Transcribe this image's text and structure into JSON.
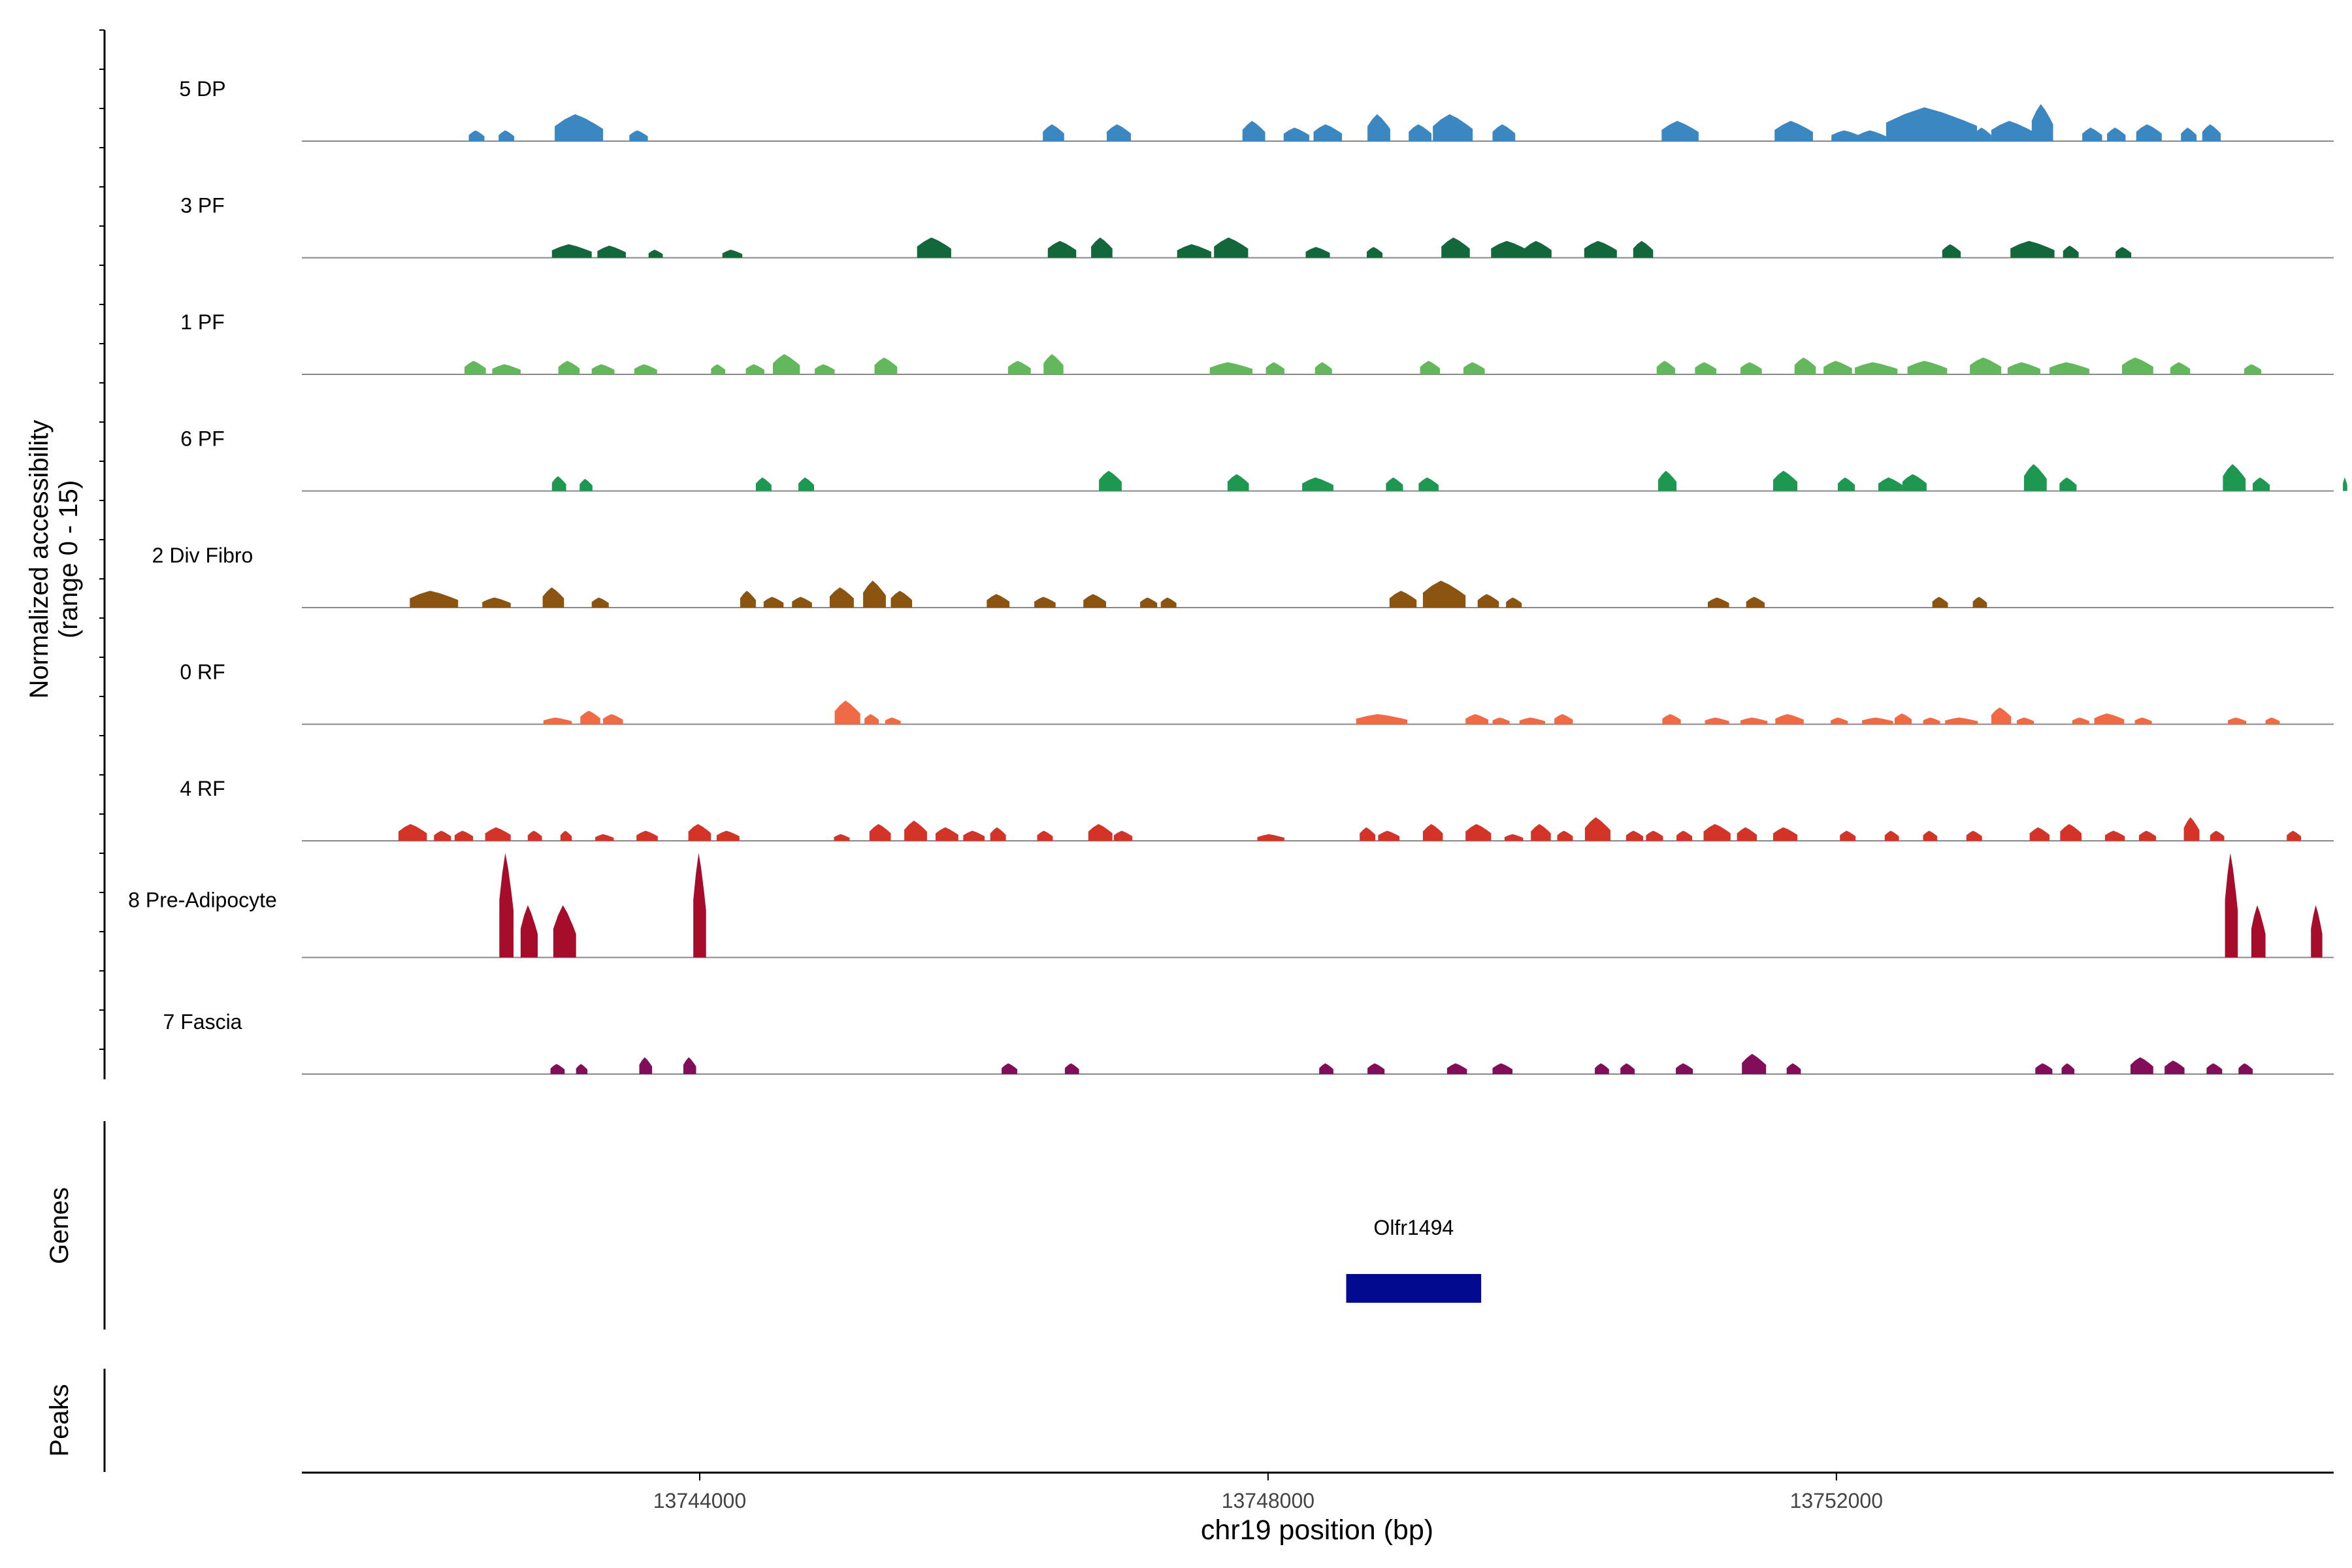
{
  "chart_data": {
    "type": "area",
    "title": "",
    "chromosome": "chr19",
    "xlabel": "chr19 position (bp)",
    "ylabel_line1": "Normalized accessibility",
    "ylabel_line2": "(range 0 - 15)",
    "xlim": [
      13741200,
      13755500
    ],
    "ylim": [
      0,
      15
    ],
    "x_ticks": [
      {
        "value": 13744000,
        "label": "13744000"
      },
      {
        "value": 13748000,
        "label": "13748000"
      },
      {
        "value": 13752000,
        "label": "13752000"
      }
    ],
    "tracks": [
      {
        "name": "5 DP",
        "color": "#3a87c2",
        "peaks": [
          [
            13742430,
            110,
            1.6
          ],
          [
            13742640,
            110,
            1.6
          ],
          [
            13743150,
            340,
            4.0
          ],
          [
            13743570,
            130,
            1.6
          ],
          [
            13746490,
            150,
            2.5
          ],
          [
            13746950,
            170,
            2.5
          ],
          [
            13747900,
            160,
            3.0
          ],
          [
            13748200,
            180,
            2.0
          ],
          [
            13748420,
            200,
            2.5
          ],
          [
            13748780,
            160,
            4.0
          ],
          [
            13749070,
            160,
            2.5
          ],
          [
            13749300,
            280,
            4.0
          ],
          [
            13749660,
            160,
            2.5
          ],
          [
            13750900,
            260,
            3.0
          ],
          [
            13751700,
            270,
            3.0
          ],
          [
            13752070,
            210,
            1.6
          ],
          [
            13752250,
            200,
            1.6
          ],
          [
            13752670,
            640,
            5.0
          ],
          [
            13753030,
            120,
            2.0
          ],
          [
            13753240,
            300,
            3.0
          ],
          [
            13753450,
            150,
            5.5
          ],
          [
            13753800,
            140,
            2.0
          ],
          [
            13753970,
            130,
            2.0
          ],
          [
            13754200,
            180,
            2.5
          ],
          [
            13754480,
            110,
            2.0
          ],
          [
            13754640,
            130,
            2.5
          ]
        ]
      },
      {
        "name": "3 PF",
        "color": "#12683a",
        "peaks": [
          [
            13743100,
            280,
            2.0
          ],
          [
            13743380,
            200,
            1.8
          ],
          [
            13743690,
            100,
            1.2
          ],
          [
            13744230,
            140,
            1.2
          ],
          [
            13745650,
            240,
            3.0
          ],
          [
            13746550,
            200,
            2.5
          ],
          [
            13746830,
            150,
            3.0
          ],
          [
            13747480,
            240,
            2.0
          ],
          [
            13747740,
            240,
            3.0
          ],
          [
            13748350,
            170,
            1.6
          ],
          [
            13748750,
            110,
            1.6
          ],
          [
            13749320,
            200,
            3.0
          ],
          [
            13749700,
            260,
            2.5
          ],
          [
            13749900,
            190,
            2.5
          ],
          [
            13750340,
            230,
            2.5
          ],
          [
            13750640,
            140,
            2.5
          ],
          [
            13752810,
            130,
            2.0
          ],
          [
            13753380,
            310,
            2.5
          ],
          [
            13753650,
            110,
            1.8
          ],
          [
            13754020,
            110,
            1.6
          ]
        ]
      },
      {
        "name": "1 PF",
        "color": "#62b85a",
        "peaks": [
          [
            13742420,
            150,
            2.0
          ],
          [
            13742640,
            200,
            1.5
          ],
          [
            13743080,
            150,
            2.0
          ],
          [
            13743320,
            160,
            1.5
          ],
          [
            13743620,
            160,
            1.5
          ],
          [
            13744130,
            100,
            1.5
          ],
          [
            13744390,
            130,
            1.5
          ],
          [
            13744610,
            190,
            3.0
          ],
          [
            13744880,
            140,
            1.5
          ],
          [
            13745310,
            160,
            2.5
          ],
          [
            13746250,
            160,
            2.0
          ],
          [
            13746490,
            140,
            3.0
          ],
          [
            13747740,
            300,
            1.8
          ],
          [
            13748050,
            130,
            1.8
          ],
          [
            13748390,
            120,
            1.8
          ],
          [
            13749140,
            140,
            2.0
          ],
          [
            13749450,
            150,
            1.8
          ],
          [
            13750800,
            130,
            2.0
          ],
          [
            13751080,
            150,
            1.8
          ],
          [
            13751400,
            150,
            1.8
          ],
          [
            13751780,
            150,
            2.5
          ],
          [
            13752010,
            200,
            2.0
          ],
          [
            13752280,
            300,
            1.8
          ],
          [
            13752640,
            280,
            2.0
          ],
          [
            13753050,
            220,
            2.5
          ],
          [
            13753320,
            230,
            1.8
          ],
          [
            13753640,
            280,
            1.8
          ],
          [
            13754120,
            220,
            2.5
          ],
          [
            13754420,
            140,
            1.8
          ],
          [
            13754930,
            120,
            1.5
          ]
        ]
      },
      {
        "name": "6 PF",
        "color": "#1c9850",
        "peaks": [
          [
            13743010,
            100,
            2.2
          ],
          [
            13743200,
            90,
            1.8
          ],
          [
            13744450,
            110,
            2.0
          ],
          [
            13744750,
            110,
            2.0
          ],
          [
            13746890,
            160,
            3.0
          ],
          [
            13747790,
            150,
            2.5
          ],
          [
            13748350,
            220,
            2.0
          ],
          [
            13748890,
            120,
            2.0
          ],
          [
            13749130,
            140,
            2.0
          ],
          [
            13750810,
            130,
            3.0
          ],
          [
            13751640,
            170,
            3.0
          ],
          [
            13752070,
            120,
            2.0
          ],
          [
            13752380,
            170,
            2.0
          ],
          [
            13752550,
            170,
            2.5
          ],
          [
            13753400,
            160,
            4.0
          ],
          [
            13753630,
            120,
            2.0
          ],
          [
            13754800,
            160,
            4.0
          ],
          [
            13754990,
            120,
            2.0
          ],
          [
            13755580,
            30,
            2.0
          ]
        ]
      },
      {
        "name": "2 Div Fibro",
        "color": "#8b5410",
        "peaks": [
          [
            13742130,
            340,
            2.5
          ],
          [
            13742570,
            200,
            1.5
          ],
          [
            13742970,
            150,
            3.0
          ],
          [
            13743300,
            120,
            1.5
          ],
          [
            13744340,
            110,
            2.5
          ],
          [
            13744520,
            140,
            1.6
          ],
          [
            13744720,
            140,
            1.6
          ],
          [
            13745000,
            170,
            3.0
          ],
          [
            13745230,
            160,
            4.0
          ],
          [
            13745420,
            150,
            2.5
          ],
          [
            13746100,
            160,
            2.0
          ],
          [
            13746430,
            150,
            1.6
          ],
          [
            13746780,
            160,
            2.0
          ],
          [
            13747160,
            120,
            1.5
          ],
          [
            13747300,
            110,
            1.5
          ],
          [
            13748950,
            190,
            2.5
          ],
          [
            13749240,
            300,
            4.0
          ],
          [
            13749550,
            150,
            2.0
          ],
          [
            13749730,
            110,
            1.5
          ],
          [
            13751170,
            150,
            1.5
          ],
          [
            13751430,
            130,
            1.6
          ],
          [
            13752730,
            110,
            1.6
          ],
          [
            13753010,
            100,
            1.6
          ]
        ]
      },
      {
        "name": "0 RF",
        "color": "#f06b45",
        "peaks": [
          [
            13743000,
            200,
            1.0
          ],
          [
            13743230,
            140,
            2.0
          ],
          [
            13743390,
            140,
            1.5
          ],
          [
            13745040,
            180,
            3.5
          ],
          [
            13745210,
            100,
            1.5
          ],
          [
            13745360,
            110,
            1.0
          ],
          [
            13748800,
            360,
            1.5
          ],
          [
            13749470,
            160,
            1.5
          ],
          [
            13749640,
            120,
            1.0
          ],
          [
            13749860,
            180,
            1.0
          ],
          [
            13750080,
            130,
            1.5
          ],
          [
            13750840,
            130,
            1.5
          ],
          [
            13751160,
            170,
            1.0
          ],
          [
            13751420,
            190,
            1.0
          ],
          [
            13751670,
            200,
            1.5
          ],
          [
            13752020,
            120,
            1.0
          ],
          [
            13752290,
            220,
            1.0
          ],
          [
            13752470,
            120,
            1.6
          ],
          [
            13752670,
            120,
            1.0
          ],
          [
            13752880,
            230,
            1.0
          ],
          [
            13753160,
            140,
            2.5
          ],
          [
            13753330,
            120,
            1.0
          ],
          [
            13753720,
            120,
            1.0
          ],
          [
            13753920,
            210,
            1.6
          ],
          [
            13754160,
            120,
            1.0
          ],
          [
            13754820,
            130,
            1.0
          ],
          [
            13755070,
            100,
            1.0
          ]
        ]
      },
      {
        "name": "4 RF",
        "color": "#d43328",
        "peaks": [
          [
            13741980,
            200,
            2.5
          ],
          [
            13742190,
            120,
            1.5
          ],
          [
            13742340,
            130,
            1.5
          ],
          [
            13742580,
            180,
            2.0
          ],
          [
            13742840,
            100,
            1.5
          ],
          [
            13743060,
            80,
            1.5
          ],
          [
            13743330,
            130,
            1.0
          ],
          [
            13743630,
            150,
            1.5
          ],
          [
            13744000,
            160,
            2.5
          ],
          [
            13744200,
            160,
            1.5
          ],
          [
            13745000,
            110,
            1.0
          ],
          [
            13745270,
            150,
            2.5
          ],
          [
            13745520,
            160,
            3.0
          ],
          [
            13745740,
            160,
            2.0
          ],
          [
            13745930,
            150,
            1.5
          ],
          [
            13746100,
            110,
            2.0
          ],
          [
            13746430,
            110,
            1.5
          ],
          [
            13746820,
            170,
            2.5
          ],
          [
            13746980,
            130,
            1.5
          ],
          [
            13748020,
            190,
            1.0
          ],
          [
            13748700,
            110,
            2.0
          ],
          [
            13748850,
            150,
            1.5
          ],
          [
            13749160,
            140,
            2.5
          ],
          [
            13749480,
            180,
            2.5
          ],
          [
            13749730,
            130,
            1.0
          ],
          [
            13749920,
            140,
            2.5
          ],
          [
            13750090,
            110,
            1.5
          ],
          [
            13750320,
            180,
            3.5
          ],
          [
            13750580,
            120,
            1.5
          ],
          [
            13750720,
            120,
            1.5
          ],
          [
            13750930,
            110,
            1.5
          ],
          [
            13751160,
            190,
            2.5
          ],
          [
            13751370,
            140,
            2.0
          ],
          [
            13751640,
            170,
            2.0
          ],
          [
            13752080,
            110,
            1.5
          ],
          [
            13752390,
            100,
            1.5
          ],
          [
            13752660,
            100,
            1.5
          ],
          [
            13752970,
            110,
            1.5
          ],
          [
            13753430,
            140,
            2.0
          ],
          [
            13753650,
            150,
            2.5
          ],
          [
            13753960,
            140,
            1.5
          ],
          [
            13754190,
            120,
            1.5
          ],
          [
            13754500,
            110,
            3.5
          ],
          [
            13754680,
            100,
            1.5
          ],
          [
            13755220,
            100,
            1.5
          ]
        ]
      },
      {
        "name": "8 Pre-Adipocyte",
        "color": "#a50d2b",
        "peaks": [
          [
            13742640,
            100,
            15.0
          ],
          [
            13742800,
            120,
            7.5
          ],
          [
            13743050,
            160,
            7.5
          ],
          [
            13744000,
            90,
            15.0
          ],
          [
            13754780,
            90,
            15.0
          ],
          [
            13754970,
            100,
            7.5
          ],
          [
            13755380,
            80,
            7.5
          ]
        ]
      },
      {
        "name": "7 Fascia",
        "color": "#820d5a",
        "peaks": [
          [
            13743000,
            100,
            1.5
          ],
          [
            13743170,
            80,
            1.5
          ],
          [
            13743620,
            90,
            2.5
          ],
          [
            13743930,
            90,
            2.5
          ],
          [
            13746180,
            110,
            1.6
          ],
          [
            13746620,
            100,
            1.6
          ],
          [
            13748410,
            100,
            1.6
          ],
          [
            13748760,
            120,
            1.6
          ],
          [
            13749330,
            140,
            1.6
          ],
          [
            13749650,
            140,
            1.6
          ],
          [
            13750350,
            100,
            1.6
          ],
          [
            13750530,
            100,
            1.6
          ],
          [
            13750930,
            120,
            1.6
          ],
          [
            13751420,
            170,
            3.0
          ],
          [
            13751700,
            100,
            1.6
          ],
          [
            13753460,
            120,
            1.6
          ],
          [
            13753630,
            90,
            1.6
          ],
          [
            13754150,
            160,
            2.5
          ],
          [
            13754380,
            140,
            2.0
          ],
          [
            13754660,
            110,
            1.6
          ],
          [
            13754880,
            100,
            1.6
          ]
        ]
      }
    ],
    "genes": {
      "label": "Genes",
      "items": [
        {
          "name": "Olfr1494",
          "start": 13748550,
          "end": 13749500,
          "color": "#020a90"
        }
      ]
    },
    "peaks_track": {
      "label": "Peaks",
      "items": []
    }
  }
}
